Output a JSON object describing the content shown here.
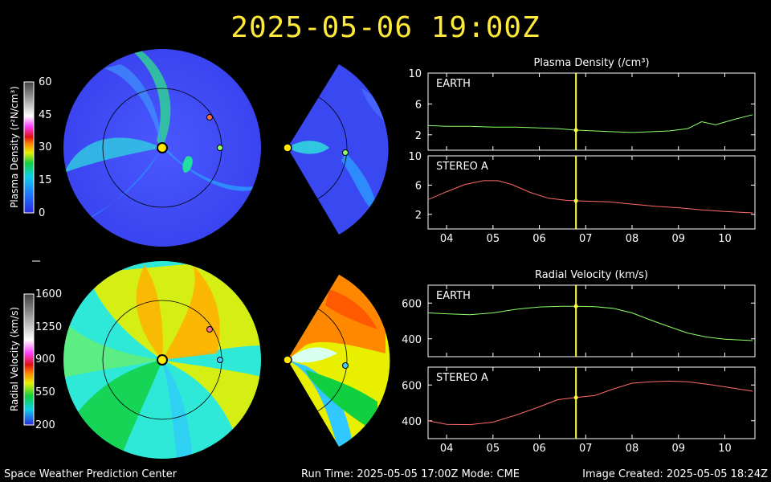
{
  "header": {
    "title": "2025-05-06 19:00Z"
  },
  "footer": {
    "left": "Space Weather Prediction Center",
    "center": "Run Time: 2025-05-05 17:00Z  Mode: CME",
    "right": "Image Created: 2025-05-05 18:24Z"
  },
  "density_colorbar": {
    "label": "Plasma Density (r²N/cm³)",
    "ticks": [
      "60",
      "45",
      "30",
      "15",
      "0"
    ]
  },
  "velocity_colorbar": {
    "label": "Radial Velocity (km/s)",
    "ticks": [
      "1600",
      "1250",
      "900",
      "550",
      "200"
    ]
  },
  "density_panel_title": "Plasma Density (/cm³)",
  "velocity_panel_title": "Radial Velocity (km/s)",
  "colors": {
    "earth": "#8cff6a",
    "stereo": "#ff6a6a",
    "time_marker": "#ffff40",
    "title": "#ffea3b"
  },
  "chart_data": [
    {
      "type": "line",
      "panel": "density-earth",
      "label": "EARTH",
      "ylim": [
        0,
        10
      ],
      "yticks": [
        2,
        6,
        10
      ],
      "x": [
        3.6,
        4.0,
        4.5,
        5.0,
        5.5,
        6.0,
        6.4,
        6.8,
        7.2,
        7.6,
        8.0,
        8.4,
        8.8,
        9.2,
        9.5,
        9.8,
        10.2,
        10.6
      ],
      "y": [
        3.2,
        3.1,
        3.1,
        3.0,
        3.0,
        2.9,
        2.8,
        2.6,
        2.5,
        2.4,
        2.3,
        2.4,
        2.5,
        2.8,
        3.7,
        3.3,
        4.0,
        4.6
      ]
    },
    {
      "type": "line",
      "panel": "density-stereo-a",
      "label": "STEREO A",
      "ylim": [
        0,
        10
      ],
      "yticks": [
        2,
        6,
        10
      ],
      "x": [
        3.6,
        4.0,
        4.4,
        4.8,
        5.1,
        5.4,
        5.8,
        6.2,
        6.6,
        7.0,
        7.5,
        8.0,
        8.5,
        9.0,
        9.5,
        10.0,
        10.6
      ],
      "y": [
        4.0,
        5.1,
        6.1,
        6.6,
        6.6,
        6.1,
        5.0,
        4.2,
        3.9,
        3.8,
        3.7,
        3.4,
        3.1,
        2.9,
        2.6,
        2.4,
        2.2
      ]
    },
    {
      "type": "line",
      "panel": "velocity-earth",
      "label": "EARTH",
      "ylim": [
        300,
        700
      ],
      "yticks": [
        400,
        600
      ],
      "x": [
        3.6,
        4.0,
        4.5,
        5.0,
        5.5,
        6.0,
        6.5,
        6.8,
        7.2,
        7.6,
        8.0,
        8.4,
        8.8,
        9.2,
        9.6,
        10.0,
        10.6
      ],
      "y": [
        545,
        540,
        535,
        545,
        565,
        578,
        582,
        582,
        580,
        570,
        545,
        505,
        468,
        432,
        410,
        398,
        390
      ]
    },
    {
      "type": "line",
      "panel": "velocity-stereo-a",
      "label": "STEREO A",
      "ylim": [
        300,
        700
      ],
      "yticks": [
        400,
        600
      ],
      "x": [
        3.6,
        4.0,
        4.5,
        5.0,
        5.5,
        6.0,
        6.4,
        6.8,
        7.2,
        7.6,
        8.0,
        8.4,
        8.8,
        9.2,
        9.6,
        10.0,
        10.6
      ],
      "y": [
        400,
        380,
        378,
        392,
        432,
        478,
        518,
        530,
        542,
        578,
        610,
        618,
        622,
        618,
        605,
        590,
        565
      ]
    }
  ],
  "x_ticks": [
    "04",
    "05",
    "06",
    "07",
    "08",
    "09",
    "10"
  ],
  "x_tick_values": [
    4,
    5,
    6,
    7,
    8,
    9,
    10
  ],
  "x_range": [
    3.6,
    10.65
  ],
  "current_time": 6.79
}
